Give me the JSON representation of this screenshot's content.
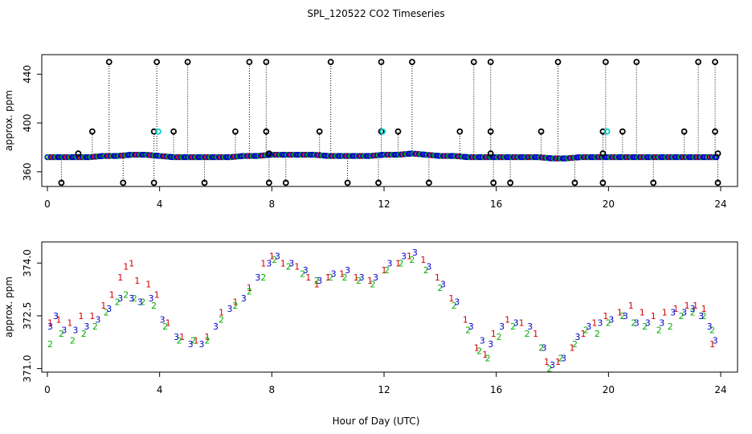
{
  "colors": {
    "series1": "#d40000",
    "series2": "#00b000",
    "series3": "#0000cc",
    "outlier": "#000000",
    "accent_cyan": "#00cccc"
  },
  "chart_data": [
    {
      "type": "scatter",
      "title": "SPL_120522  CO2 Timeseries",
      "xlabel": "",
      "ylabel": "approx. ppm",
      "xlim": [
        -0.2,
        24.6
      ],
      "ylim": [
        348,
        456
      ],
      "xticks": [
        0,
        4,
        8,
        12,
        16,
        20,
        24
      ],
      "xtick_labels": [
        "0",
        "4",
        "8",
        "12",
        "16",
        "20",
        "24"
      ],
      "yticks": [
        360,
        400,
        440
      ],
      "ytick_labels": [
        "360",
        "400",
        "440"
      ],
      "baseline": {
        "hours": [
          0,
          0.5,
          1,
          1.5,
          2,
          2.5,
          3,
          3.5,
          4,
          4.5,
          5,
          5.5,
          6,
          6.5,
          7,
          7.5,
          8,
          8.5,
          9,
          9.5,
          10,
          10.5,
          11,
          11.5,
          12,
          12.5,
          13,
          13.5,
          14,
          14.5,
          15,
          15.5,
          16,
          16.5,
          17,
          17.5,
          18,
          18.5,
          19,
          19.5,
          20,
          20.5,
          21,
          21.5,
          22,
          22.5,
          23,
          23.5,
          23.9
        ],
        "values": [
          372,
          372,
          372,
          372,
          373,
          373,
          374,
          374,
          373,
          372,
          372,
          372,
          372,
          372,
          373,
          373,
          374,
          374,
          374,
          374,
          373,
          373,
          373,
          373,
          374,
          374,
          375,
          374,
          373,
          373,
          372,
          372,
          372,
          372,
          372,
          372,
          371,
          371,
          372,
          372,
          372,
          372,
          372,
          372,
          372,
          372,
          372,
          372,
          372
        ]
      },
      "outliers": {
        "hours": [
          2.2,
          3.9,
          5.0,
          7.2,
          7.8,
          10.1,
          11.9,
          13.0,
          15.2,
          15.8,
          18.2,
          19.9,
          21.0,
          23.2,
          23.8,
          1.6,
          3.8,
          4.5,
          6.7,
          7.8,
          9.7,
          11.9,
          12.5,
          14.7,
          15.8,
          17.6,
          19.8,
          20.5,
          22.7,
          23.8,
          0.5,
          2.7,
          3.8,
          5.6,
          7.9,
          8.5,
          10.7,
          11.8,
          13.6,
          15.9,
          16.5,
          18.8,
          19.8,
          21.6,
          23.9,
          1.1,
          7.9,
          15.8,
          19.8,
          23.9
        ],
        "values": [
          450,
          450,
          450,
          450,
          450,
          450,
          450,
          450,
          450,
          450,
          450,
          450,
          450,
          450,
          450,
          393,
          393,
          393,
          393,
          393,
          393,
          393,
          393,
          393,
          393,
          393,
          393,
          393,
          393,
          393,
          351,
          351,
          351,
          351,
          351,
          351,
          351,
          351,
          351,
          351,
          351,
          351,
          351,
          351,
          351,
          375,
          375,
          375,
          375,
          375
        ]
      },
      "cyan_points": {
        "hours": [
          3.95,
          11.95,
          19.95
        ],
        "values": [
          393,
          393,
          393
        ]
      }
    },
    {
      "type": "scatter",
      "title": "",
      "xlabel": "Hour of Day (UTC)",
      "ylabel": "approx. ppm",
      "xlim": [
        -0.2,
        24.6
      ],
      "ylim": [
        370.9,
        374.6
      ],
      "xticks": [
        0,
        4,
        8,
        12,
        16,
        20,
        24
      ],
      "xtick_labels": [
        "0",
        "4",
        "8",
        "12",
        "16",
        "20",
        "24"
      ],
      "yticks": [
        371.0,
        372.5,
        374.0
      ],
      "ytick_labels": [
        "371.0",
        "372.5",
        "374.0"
      ],
      "series": [
        {
          "name": "1",
          "marker": "1",
          "hours": [
            0.1,
            0.4,
            0.8,
            1.2,
            1.6,
            2.0,
            2.3,
            2.6,
            2.8,
            3.0,
            3.2,
            3.6,
            3.9,
            4.3,
            4.8,
            5.3,
            5.7,
            6.2,
            6.7,
            7.2,
            7.7,
            8.0,
            8.4,
            8.9,
            9.3,
            9.6,
            10.0,
            10.5,
            11.0,
            11.5,
            12.0,
            12.5,
            12.9,
            13.4,
            13.9,
            14.4,
            14.9,
            15.3,
            15.6,
            15.9,
            16.4,
            16.9,
            17.4,
            17.8,
            18.2,
            18.7,
            19.1,
            19.5,
            19.9,
            20.4,
            20.8,
            21.2,
            21.6,
            22.0,
            22.4,
            22.8,
            23.1,
            23.4,
            23.7
          ],
          "values": [
            372.3,
            372.4,
            372.3,
            372.5,
            372.5,
            372.8,
            373.1,
            373.6,
            373.9,
            374.0,
            373.5,
            373.4,
            373.1,
            372.3,
            371.9,
            371.8,
            371.9,
            372.6,
            372.9,
            373.3,
            374.0,
            374.2,
            374.0,
            373.9,
            373.6,
            373.4,
            373.6,
            373.7,
            373.6,
            373.5,
            373.8,
            374.0,
            374.2,
            374.1,
            373.6,
            373.0,
            372.4,
            371.6,
            371.4,
            372.0,
            372.4,
            372.3,
            372.0,
            371.2,
            371.2,
            371.6,
            372.0,
            372.3,
            372.5,
            372.6,
            372.8,
            372.6,
            372.5,
            372.6,
            372.7,
            372.8,
            372.8,
            372.7,
            371.7
          ],
          "color": "#d40000"
        },
        {
          "name": "2",
          "marker": "2",
          "hours": [
            0.1,
            0.5,
            0.9,
            1.3,
            1.7,
            2.1,
            2.5,
            2.8,
            3.1,
            3.4,
            3.8,
            4.2,
            4.7,
            5.2,
            5.7,
            6.2,
            6.7,
            7.2,
            7.7,
            8.1,
            8.6,
            9.1,
            9.6,
            10.1,
            10.6,
            11.1,
            11.6,
            12.1,
            12.6,
            13.0,
            13.5,
            14.0,
            14.5,
            15.0,
            15.4,
            15.7,
            16.1,
            16.6,
            17.1,
            17.6,
            17.9,
            18.3,
            18.8,
            19.2,
            19.6,
            20.0,
            20.5,
            20.9,
            21.3,
            21.8,
            22.2,
            22.6,
            23.0,
            23.4,
            23.7
          ],
          "values": [
            371.7,
            372.0,
            371.8,
            372.0,
            372.2,
            372.6,
            372.9,
            373.1,
            373.0,
            372.9,
            372.8,
            372.2,
            371.8,
            371.8,
            371.8,
            372.4,
            372.8,
            373.2,
            373.6,
            374.1,
            373.9,
            373.7,
            373.5,
            373.6,
            373.6,
            373.5,
            373.4,
            373.8,
            374.0,
            374.1,
            373.8,
            373.3,
            372.8,
            372.1,
            371.5,
            371.3,
            371.9,
            372.2,
            372.0,
            371.6,
            371.0,
            371.3,
            371.7,
            372.1,
            372.0,
            372.3,
            372.5,
            372.3,
            372.2,
            372.1,
            372.2,
            372.5,
            372.6,
            372.5,
            372.1
          ],
          "color": "#00b000"
        },
        {
          "name": "3",
          "marker": "3",
          "hours": [
            0.1,
            0.3,
            0.6,
            1.0,
            1.4,
            1.8,
            2.2,
            2.6,
            3.0,
            3.3,
            3.7,
            4.1,
            4.6,
            5.1,
            5.5,
            6.0,
            6.5,
            7.0,
            7.5,
            7.9,
            8.2,
            8.7,
            9.2,
            9.7,
            10.2,
            10.7,
            11.2,
            11.7,
            12.2,
            12.7,
            13.1,
            13.6,
            14.1,
            14.6,
            15.1,
            15.5,
            15.8,
            16.2,
            16.7,
            17.2,
            17.7,
            18.0,
            18.4,
            18.9,
            19.3,
            19.7,
            20.1,
            20.6,
            21.0,
            21.4,
            21.9,
            22.3,
            22.7,
            23.0,
            23.3,
            23.6,
            23.8
          ],
          "values": [
            372.2,
            372.5,
            372.1,
            372.1,
            372.2,
            372.4,
            372.7,
            373.0,
            373.0,
            372.9,
            373.0,
            372.4,
            371.9,
            371.7,
            371.7,
            372.2,
            372.7,
            373.0,
            373.6,
            374.0,
            374.2,
            374.0,
            373.8,
            373.5,
            373.7,
            373.8,
            373.6,
            373.6,
            374.0,
            374.2,
            374.3,
            373.9,
            373.4,
            372.9,
            372.2,
            371.8,
            371.7,
            372.2,
            372.3,
            372.2,
            371.6,
            371.1,
            371.3,
            371.9,
            372.2,
            372.3,
            372.4,
            372.5,
            372.3,
            372.3,
            372.3,
            372.6,
            372.6,
            372.7,
            372.5,
            372.2,
            371.8
          ],
          "color": "#0000cc"
        }
      ]
    }
  ]
}
